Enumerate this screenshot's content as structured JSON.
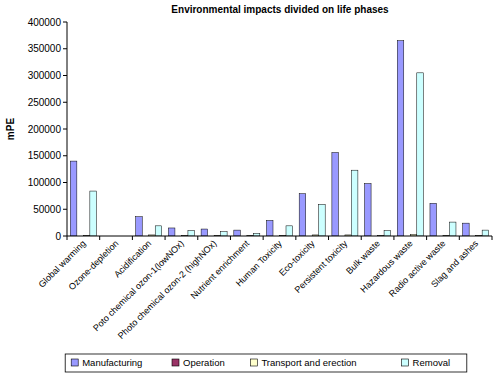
{
  "chart_data": {
    "type": "bar",
    "title": "Environmental impacts divided on life phases",
    "y_label": "mPE",
    "categories": [
      "Global warming",
      "Ozone-depletion",
      "Acidification",
      "Poto chemical ozon-1(lowNOx)",
      "Photo chemical ozon-2 (highNOx)",
      "Nutrient enrichment",
      "Human Toxicity",
      "Eco-toxicity",
      "Persistent toxicity",
      "Bulk waste",
      "Hazardous waste",
      "Radio active waste",
      "Slag and ashes"
    ],
    "series": [
      {
        "name": "Manufacturing",
        "color": "#9999ff",
        "values": [
          140000,
          0,
          36000,
          15000,
          13000,
          11000,
          29000,
          79000,
          156000,
          98000,
          365000,
          61000,
          24000
        ]
      },
      {
        "name": "Operation",
        "color": "#993366",
        "values": [
          0,
          0,
          0,
          0,
          0,
          0,
          0,
          0,
          0,
          0,
          0,
          0,
          0
        ]
      },
      {
        "name": "Transport and erection",
        "color": "#ffffcc",
        "values": [
          1000,
          0,
          2000,
          1000,
          1000,
          1000,
          1000,
          2000,
          2000,
          1000,
          3000,
          1000,
          1000
        ]
      },
      {
        "name": "Removal",
        "color": "#ccffff",
        "values": [
          84000,
          0,
          19000,
          10000,
          8000,
          5000,
          19000,
          59000,
          123000,
          10000,
          305000,
          26000,
          11000
        ]
      }
    ],
    "ylim": [
      0,
      400000
    ],
    "yticks": [
      0,
      50000,
      100000,
      150000,
      200000,
      250000,
      300000,
      350000,
      400000
    ],
    "grid": false,
    "legend": "bottom"
  }
}
